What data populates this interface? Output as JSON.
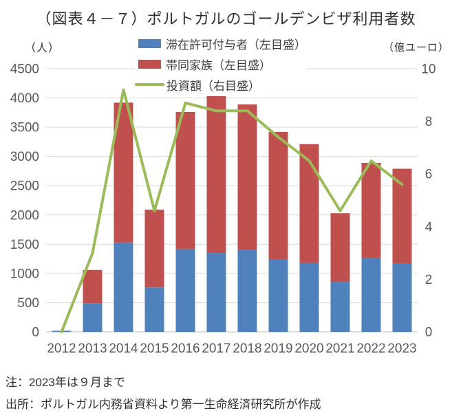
{
  "title": "（図表４－７）ポルトガルのゴールデンビザ利用者数",
  "left_axis_unit": "（人）",
  "right_axis_unit": "（億ユーロ）",
  "legend": {
    "items": [
      {
        "label": "滞在許可付与者（左目盛）",
        "color": "#4F81BD",
        "swatch": "box"
      },
      {
        "label": "帯同家族（左目盛）",
        "color": "#C0504D",
        "swatch": "box"
      },
      {
        "label": "投資額（右目盛）",
        "color": "#9BBB59",
        "swatch": "line"
      }
    ]
  },
  "notes": {
    "note": "注：2023年は９月まで",
    "source": "出所：ポルトガル内務省資料より第一生命経済研究所が作成"
  },
  "colors": {
    "permits_bar": "#4F81BD",
    "family_bar": "#C0504D",
    "investment_line": "#9BBB59",
    "gridline": "#D9D9D9",
    "baseline": "#BFBFBF",
    "tick_text": "#595959"
  },
  "chart_data": {
    "type": "bar",
    "subtype": "stacked-bars-with-line",
    "title": "（図表４－７）ポルトガルのゴールデンビザ利用者数",
    "categories": [
      "2012",
      "2013",
      "2014",
      "2015",
      "2016",
      "2017",
      "2018",
      "2019",
      "2020",
      "2021",
      "2022",
      "2023"
    ],
    "series": [
      {
        "name": "滞在許可付与者（左目盛）",
        "type": "bar",
        "stack": "users",
        "axis": "left",
        "color": "#4F81BD",
        "values": [
          20,
          490,
          1530,
          760,
          1415,
          1350,
          1400,
          1245,
          1180,
          855,
          1270,
          1175
        ]
      },
      {
        "name": "帯同家族（左目盛）",
        "type": "bar",
        "stack": "users",
        "axis": "left",
        "color": "#C0504D",
        "values": [
          0,
          570,
          2390,
          1330,
          2345,
          2680,
          2490,
          2175,
          2030,
          1175,
          1620,
          1615
        ]
      },
      {
        "name": "投資額（右目盛）",
        "type": "line",
        "axis": "right",
        "color": "#9BBB59",
        "values": [
          0.0,
          3.0,
          9.2,
          4.6,
          8.7,
          8.4,
          8.4,
          7.4,
          6.5,
          4.6,
          6.5,
          5.6
        ]
      }
    ],
    "left_axis": {
      "label": "（人）",
      "min": 0,
      "max": 4500,
      "step": 500
    },
    "right_axis": {
      "label": "（億ユーロ）",
      "min": 0,
      "max": 10,
      "step": 2
    },
    "grid": true,
    "legend_position": "top-center"
  }
}
